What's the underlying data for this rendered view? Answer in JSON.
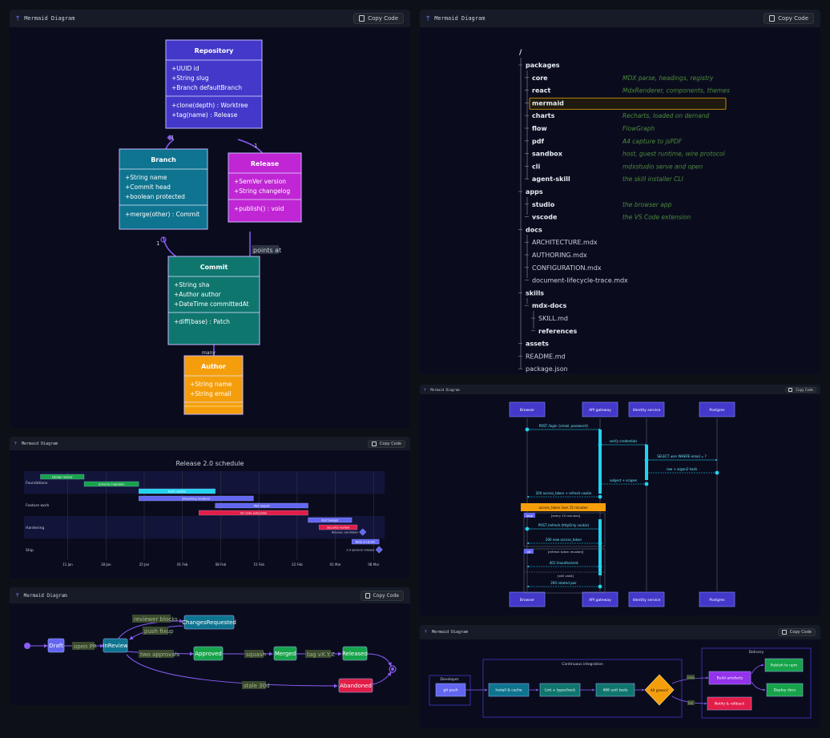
{
  "panels": {
    "title": "Mermaid Diagram",
    "copy_label": "Copy Code"
  },
  "class_diagram": {
    "classes": [
      {
        "name": "Repository",
        "attrs": [
          "+UUID id",
          "+String slug",
          "+Branch defaultBranch"
        ],
        "methods": [
          "+clone(depth) : Worktree",
          "+tag(name) : Release"
        ],
        "color": "#4338ca"
      },
      {
        "name": "Branch",
        "attrs": [
          "+String name",
          "+Commit head",
          "+boolean protected"
        ],
        "methods": [
          "+merge(other) : Commit"
        ],
        "color": "#0e7490"
      },
      {
        "name": "Release",
        "attrs": [
          "+SemVer version",
          "+String changelog"
        ],
        "methods": [
          "+publish() : void"
        ],
        "color": "#c026d3"
      },
      {
        "name": "Commit",
        "attrs": [
          "+String sha",
          "+Author author",
          "+DateTime committedAt"
        ],
        "methods": [
          "+diff(base) : Patch"
        ],
        "color": "#0f766e"
      },
      {
        "name": "Author",
        "attrs": [
          "+String name",
          "+String email"
        ],
        "methods": [],
        "color": "#f59e0b"
      }
    ],
    "relations": [
      {
        "from": "Repository",
        "to": "Branch",
        "from_card": "1",
        "to_card": "many"
      },
      {
        "from": "Repository",
        "to": "Release",
        "from_card": "1",
        "to_card": "many"
      },
      {
        "from": "Branch",
        "to": "Commit",
        "from_card": "1",
        "to_card": "many"
      },
      {
        "from": "Release",
        "to": "Commit",
        "label": "points at"
      },
      {
        "from": "Commit",
        "to": "Author",
        "from_card": "many",
        "to_card": "1"
      }
    ]
  },
  "tree": {
    "root": "/",
    "rows": [
      {
        "label": "packages",
        "depth": 0,
        "bold": true,
        "note": ""
      },
      {
        "label": "core",
        "depth": 1,
        "bold": true,
        "note": "MDX parse, headings, registry"
      },
      {
        "label": "react",
        "depth": 1,
        "bold": true,
        "note": "MdxRenderer, components, themes"
      },
      {
        "label": "mermaid",
        "depth": 1,
        "bold": true,
        "note": "",
        "highlight": true
      },
      {
        "label": "charts",
        "depth": 1,
        "bold": true,
        "note": "Recharts, loaded on demand"
      },
      {
        "label": "flow",
        "depth": 1,
        "bold": true,
        "note": "FlowGraph"
      },
      {
        "label": "pdf",
        "depth": 1,
        "bold": true,
        "note": "A4 capture to jsPDF"
      },
      {
        "label": "sandbox",
        "depth": 1,
        "bold": true,
        "note": "host, guest runtime, wire protocol"
      },
      {
        "label": "cli",
        "depth": 1,
        "bold": true,
        "note": "mdxstudio serve and open"
      },
      {
        "label": "agent-skill",
        "depth": 1,
        "bold": true,
        "note": "the skill installer CLI"
      },
      {
        "label": "apps",
        "depth": 0,
        "bold": true,
        "note": ""
      },
      {
        "label": "studio",
        "depth": 1,
        "bold": true,
        "note": "the browser app"
      },
      {
        "label": "vscode",
        "depth": 1,
        "bold": true,
        "note": "the VS Code extension"
      },
      {
        "label": "docs",
        "depth": 0,
        "bold": true,
        "note": ""
      },
      {
        "label": "ARCHITECTURE.mdx",
        "depth": 1,
        "bold": false,
        "note": ""
      },
      {
        "label": "AUTHORING.mdx",
        "depth": 1,
        "bold": false,
        "note": ""
      },
      {
        "label": "CONFIGURATION.mdx",
        "depth": 1,
        "bold": false,
        "note": ""
      },
      {
        "label": "document-lifecycle-trace.mdx",
        "depth": 1,
        "bold": false,
        "note": ""
      },
      {
        "label": "skills",
        "depth": 0,
        "bold": true,
        "note": ""
      },
      {
        "label": "mdx-docs",
        "depth": 1,
        "bold": true,
        "note": ""
      },
      {
        "label": "SKILL.md",
        "depth": 2,
        "bold": false,
        "note": ""
      },
      {
        "label": "references",
        "depth": 2,
        "bold": true,
        "note": ""
      },
      {
        "label": "assets",
        "depth": 0,
        "bold": true,
        "note": ""
      },
      {
        "label": "README.md",
        "depth": 0,
        "bold": false,
        "note": ""
      },
      {
        "label": "package.json",
        "depth": 0,
        "bold": false,
        "note": ""
      }
    ]
  },
  "gantt": {
    "title": "Release 2.0 schedule",
    "sections": [
      "Foundations",
      "Feature work",
      "Hardening",
      "Ship"
    ],
    "ticks": [
      "11 Jan",
      "18 Jan",
      "25 Jan",
      "01 Feb",
      "08 Feb",
      "15 Feb",
      "22 Feb",
      "01 Mar",
      "08 Mar"
    ],
    "tasks": [
      {
        "label": "Design review",
        "section": 0,
        "start": "2025-01-06",
        "end": "2025-01-14",
        "color": "#16a34a"
      },
      {
        "label": "Schema migration",
        "section": 0,
        "start": "2025-01-14",
        "end": "2025-01-24",
        "color": "#16a34a"
      },
      {
        "label": "Auth rewrite",
        "section": 1,
        "start": "2025-01-24",
        "end": "2025-02-07",
        "color": "#22d3ee"
      },
      {
        "label": "Streaming renderer",
        "section": 1,
        "start": "2025-01-24",
        "end": "2025-02-14",
        "color": "#6366f1"
      },
      {
        "label": "PDF export",
        "section": 1,
        "start": "2025-02-07",
        "end": "2025-02-24",
        "color": "#6366f1"
      },
      {
        "label": "VS Code extension",
        "section": 1,
        "start": "2025-02-04",
        "end": "2025-02-24",
        "color": "#e11d48"
      },
      {
        "label": "Perf budget",
        "section": 2,
        "start": "2025-02-24",
        "end": "2025-03-04",
        "color": "#6366f1"
      },
      {
        "label": "Security review",
        "section": 2,
        "start": "2025-02-26",
        "end": "2025-03-05",
        "color": "#e11d48"
      }
    ],
    "milestones": [
      {
        "label": "Release candidate",
        "section": 2,
        "date": "2025-03-06"
      },
      {
        "label": "2.0 general release",
        "section": 3,
        "date": "2025-03-09"
      }
    ],
    "ship_task": {
      "label": "Beta on-prem",
      "section": 3,
      "start": "2025-03-04",
      "end": "2025-03-09",
      "color": "#6366f1"
    }
  },
  "state": {
    "states": [
      {
        "id": "Draft",
        "color": "#6366f1"
      },
      {
        "id": "InReview",
        "color": "#0e7490"
      },
      {
        "id": "ChangesRequested",
        "color": "#0e7490"
      },
      {
        "id": "Approved",
        "color": "#16a34a"
      },
      {
        "id": "Merged",
        "color": "#16a34a"
      },
      {
        "id": "Released",
        "color": "#16a34a"
      },
      {
        "id": "Abandoned",
        "color": "#e11d48"
      }
    ],
    "transitions": [
      {
        "from": "Draft",
        "to": "InReview",
        "label": "open PR"
      },
      {
        "from": "InReview",
        "to": "ChangesRequested",
        "label": "reviewer blocks"
      },
      {
        "from": "ChangesRequested",
        "to": "InReview",
        "label": "push fixup"
      },
      {
        "from": "InReview",
        "to": "Approved",
        "label": "two approvals"
      },
      {
        "from": "Approved",
        "to": "Merged",
        "label": "squash"
      },
      {
        "from": "Merged",
        "to": "Released",
        "label": "tag vX.Y.Z"
      },
      {
        "from": "InReview",
        "to": "Abandoned",
        "label": "stale 30d"
      }
    ]
  },
  "sequence": {
    "actors": [
      "Browser",
      "API gateway",
      "Identity service",
      "Postgres"
    ],
    "messages": [
      {
        "text": "POST /login {email, password}",
        "from": 0,
        "to": 1
      },
      {
        "text": "verify credentials",
        "from": 1,
        "to": 2
      },
      {
        "text": "SELECT user WHERE email = ?",
        "from": 2,
        "to": 3
      },
      {
        "text": "row + argon2 hash",
        "from": 3,
        "to": 2,
        "reply": true
      },
      {
        "text": "subject + scopes",
        "from": 2,
        "to": 1,
        "reply": true
      },
      {
        "text": "200 access_token + refresh cookie",
        "from": 1,
        "to": 0,
        "reply": true
      },
      {
        "text": "POST /refresh (httpOnly cookie)",
        "from": 0,
        "to": 1
      },
      {
        "text": "200 new access_token",
        "from": 1,
        "to": 0,
        "reply": true
      },
      {
        "text": "401 Unauthorized",
        "from": 1,
        "to": 0,
        "reply": true
      },
      {
        "text": "200 rotated pair",
        "from": 1,
        "to": 0,
        "reply": true
      }
    ],
    "note": "access_token lives 15 minutes",
    "loop": {
      "tag": "loop",
      "label": "[every 15 minutes]"
    },
    "alt": {
      "tag": "alt",
      "label": "[refresh token revoked]",
      "else_label": "[still valid]"
    }
  },
  "flow": {
    "groups": [
      "Developer",
      "Continuous integration",
      "Delivery"
    ],
    "nodes": [
      {
        "id": "git push",
        "color": "#6366f1"
      },
      {
        "id": "Install & cache",
        "color": "#0e7490"
      },
      {
        "id": "Lint + typecheck",
        "color": "#0f766e"
      },
      {
        "id": "466 unit tests",
        "color": "#0f766e"
      },
      {
        "id": "All green?",
        "color": "#f59e0b"
      },
      {
        "id": "Build artefacts",
        "color": "#9333ea"
      },
      {
        "id": "Notify & rollback",
        "color": "#e11d48"
      },
      {
        "id": "Publish to npm",
        "color": "#16a34a"
      },
      {
        "id": "Deploy docs",
        "color": "#16a34a"
      }
    ],
    "edge_labels": [
      "pass",
      "fail"
    ]
  }
}
